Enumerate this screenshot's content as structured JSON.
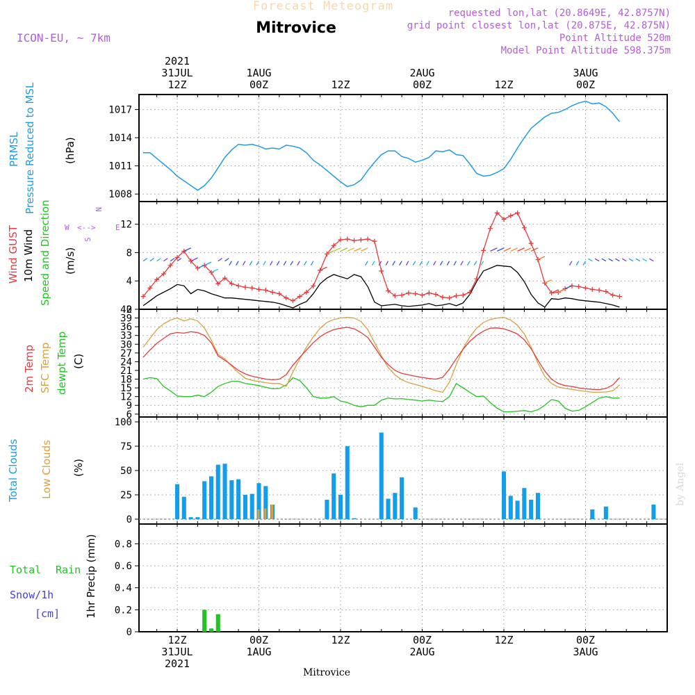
{
  "header": {
    "forecast_label": "Forecast Meteogram",
    "station": "Mitrovice",
    "model": "ICON-EU, ~ 7km",
    "requested": "requested lon,lat (20.8649E, 42.8757N)",
    "grid_point": "grid point closest lon,lat (20.875E, 42.875N)",
    "point_altitude": "Point Altitude 520m",
    "model_altitude": "Model Point Altitude 598.375m",
    "footer_station": "Mitrovice",
    "credit": "by Angel"
  },
  "colors": {
    "pressure": "#1e9be6",
    "gust": "#e8393c",
    "wind": "#000000",
    "t2m": "#e8393c",
    "sfc": "#d9a03f",
    "dewpt": "#22c322",
    "total_clouds": "#149de8",
    "low_clouds": "#d9a03f",
    "rain": "#22c322",
    "snow": "#4040e0",
    "purple": "#b45cd8"
  },
  "time_axis": {
    "top": [
      {
        "t": 0,
        "lines": [
          "2021",
          "31JUL",
          "12Z"
        ]
      },
      {
        "t": 12,
        "lines": [
          "1AUG",
          "00Z"
        ]
      },
      {
        "t": 24,
        "lines": [
          "12Z"
        ]
      },
      {
        "t": 36,
        "lines": [
          "2AUG",
          "00Z"
        ]
      },
      {
        "t": 48,
        "lines": [
          "12Z"
        ]
      },
      {
        "t": 60,
        "lines": [
          "3AUG",
          "00Z"
        ]
      }
    ],
    "bottom": [
      {
        "t": 0,
        "lines": [
          "12Z",
          "31JUL",
          "2021"
        ]
      },
      {
        "t": 12,
        "lines": [
          "00Z",
          "1AUG"
        ]
      },
      {
        "t": 24,
        "lines": [
          "12Z"
        ]
      },
      {
        "t": 36,
        "lines": [
          "00Z",
          "2AUG"
        ]
      },
      {
        "t": 48,
        "lines": [
          "12Z"
        ]
      },
      {
        "t": 60,
        "lines": [
          "00Z",
          "3AUG"
        ]
      }
    ]
  },
  "panel_labels": {
    "pressure": {
      "name1": "PRMSL",
      "name2": "Pressure Reduced to MSL",
      "unit": "(hPa)"
    },
    "wind": {
      "gust": "Wind GUST",
      "wind10": "10m Wind",
      "dir": "Speed and Direction",
      "unit": "(m/s)",
      "compass": {
        "w": "W",
        "e": "E",
        "n": "N",
        "s": "S"
      }
    },
    "temp": {
      "t2m": "2m Temp",
      "sfc": "SFC Temp",
      "dew": "dewpt Temp",
      "unit": "(C)"
    },
    "clouds": {
      "total": "Total Clouds",
      "low": "Low Clouds",
      "unit": "(%)"
    },
    "precip": {
      "total": "Total",
      "rain": "Rain",
      "snow": "Snow/1h",
      "snow_unit": "[cm]",
      "ylabel": "1hr Precip (mm)"
    }
  },
  "chart_data": [
    {
      "type": "line",
      "title": "PRMSL Pressure Reduced to MSL",
      "ylabel": "(hPa)",
      "ylim": [
        1007.2,
        1018.6
      ],
      "yticks": [
        1008,
        1011,
        1014,
        1017
      ],
      "x_hours_from_31JUL12Z": [
        -5,
        -4,
        -3,
        -2,
        -1,
        0,
        1,
        2,
        3,
        4,
        5,
        6,
        7,
        8,
        9,
        10,
        11,
        12,
        13,
        14,
        15,
        16,
        17,
        18,
        19,
        20,
        21,
        22,
        23,
        24,
        25,
        26,
        27,
        28,
        29,
        30,
        31,
        32,
        33,
        34,
        35,
        36,
        37,
        38,
        39,
        40,
        41,
        42,
        43,
        44,
        45,
        46,
        47,
        48,
        49,
        50,
        51,
        52,
        53,
        54,
        55,
        56,
        57,
        58,
        59,
        60,
        61,
        62,
        63,
        64,
        65,
        66,
        67,
        68,
        69,
        70
      ],
      "series": [
        {
          "name": "PRMSL",
          "values": [
            1012.4,
            1012.4,
            1011.8,
            1011.2,
            1010.6,
            1009.9,
            1009.4,
            1008.9,
            1008.4,
            1008.9,
            1009.7,
            1010.8,
            1011.9,
            1012.7,
            1013.3,
            1013.2,
            1013.3,
            1013.1,
            1012.8,
            1012.9,
            1012.8,
            1013.2,
            1013.1,
            1012.9,
            1012.4,
            1011.6,
            1011.1,
            1010.5,
            1009.9,
            1009.3,
            1008.8,
            1009.0,
            1009.5,
            1010.5,
            1011.4,
            1012.2,
            1012.6,
            1012.6,
            1012.0,
            1011.8,
            1011.4,
            1011.6,
            1011.9,
            1012.6,
            1012.5,
            1012.7,
            1012.2,
            1012.1,
            1011.2,
            1010.2,
            1009.9,
            1010.0,
            1010.3,
            1010.7,
            1011.7,
            1012.9,
            1014.0,
            1015.0,
            1015.6,
            1016.2,
            1016.6,
            1016.7,
            1017.0,
            1017.4,
            1017.7,
            1017.9,
            1017.6,
            1017.7,
            1017.3,
            1016.6,
            1015.7
          ]
        }
      ]
    },
    {
      "type": "line",
      "title": "Wind GUST / 10m Wind Speed and Direction",
      "ylabel": "(m/s)",
      "ylim": [
        0,
        15.2
      ],
      "yticks": [
        0,
        4,
        8,
        12
      ],
      "x_hours_from_31JUL12Z": [
        -5,
        -4,
        -3,
        -2,
        -1,
        0,
        1,
        2,
        3,
        4,
        5,
        6,
        7,
        8,
        9,
        10,
        11,
        12,
        13,
        14,
        15,
        16,
        17,
        18,
        19,
        20,
        21,
        22,
        23,
        24,
        25,
        26,
        27,
        28,
        29,
        30,
        31,
        32,
        33,
        34,
        35,
        36,
        37,
        38,
        39,
        40,
        41,
        42,
        43,
        44,
        45,
        46,
        47,
        48,
        49,
        50,
        51,
        52,
        53,
        54,
        55,
        56,
        57,
        58,
        59,
        60,
        61,
        62,
        63,
        64,
        65,
        66,
        67,
        68,
        69,
        70
      ],
      "series": [
        {
          "name": "Wind GUST",
          "values": [
            1.8,
            3.0,
            4.2,
            5.0,
            6.2,
            7.3,
            8.2,
            6.8,
            5.8,
            6.2,
            5.2,
            3.6,
            4.4,
            3.6,
            3.3,
            3.1,
            3.0,
            2.8,
            2.7,
            2.4,
            2.2,
            1.6,
            1.2,
            1.8,
            2.4,
            3.3,
            5.5,
            7.8,
            9.0,
            9.8,
            9.9,
            9.7,
            9.8,
            9.9,
            9.6,
            5.4,
            2.6,
            1.9,
            2.0,
            2.3,
            2.2,
            2.0,
            2.3,
            2.1,
            1.7,
            1.6,
            1.9,
            2.0,
            2.4,
            4.3,
            8.3,
            11.4,
            13.6,
            12.7,
            13.2,
            13.6,
            11.5,
            9.3,
            7.0,
            3.7,
            2.3,
            2.4,
            2.9,
            3.3,
            3.2,
            3.0,
            2.8,
            2.7,
            2.5,
            2.0,
            1.8
          ],
          "extra_tail": [
            2.6,
            3.3,
            4.3,
            4.9,
            4.9,
            5.0
          ]
        },
        {
          "name": "10m Wind",
          "values": [
            0.5,
            1.2,
            1.9,
            2.4,
            2.9,
            3.5,
            3.3,
            2.2,
            2.8,
            2.6,
            2.2,
            1.9,
            1.6,
            1.6,
            1.5,
            1.4,
            1.3,
            1.2,
            1.1,
            1.0,
            0.8,
            0.5,
            0.2,
            0.7,
            1.1,
            2.2,
            3.6,
            4.4,
            4.9,
            4.6,
            4.3,
            4.9,
            4.6,
            3.2,
            1.0,
            0.5,
            0.6,
            0.7,
            0.5,
            0.4,
            0.5,
            0.6,
            0.8,
            0.5,
            0.6,
            0.8,
            0.5,
            0.9,
            2.1,
            3.9,
            5.4,
            5.8,
            6.2,
            6.1,
            6.0,
            5.2,
            3.9,
            2.1,
            0.9,
            0.3,
            1.5,
            1.4,
            1.6,
            1.5,
            1.3,
            1.2,
            1.1,
            1.0,
            0.8,
            0.6,
            0.3
          ],
          "extra_tail": [
            0.8,
            1.6,
            2.1,
            2.2,
            1.9,
            1.8
          ]
        }
      ]
    },
    {
      "type": "line",
      "title": "2m Temp / SFC Temp / dewpt Temp",
      "ylabel": "(C)",
      "ylim": [
        5,
        42
      ],
      "yticks": [
        6,
        9,
        12,
        15,
        18,
        21,
        24,
        27,
        30,
        33,
        36,
        39,
        42
      ],
      "x_hours_from_31JUL12Z": [
        -5,
        -4,
        -3,
        -2,
        -1,
        0,
        1,
        2,
        3,
        4,
        5,
        6,
        7,
        8,
        9,
        10,
        11,
        12,
        13,
        14,
        15,
        16,
        17,
        18,
        19,
        20,
        21,
        22,
        23,
        24,
        25,
        26,
        27,
        28,
        29,
        30,
        31,
        32,
        33,
        34,
        35,
        36,
        37,
        38,
        39,
        40,
        41,
        42,
        43,
        44,
        45,
        46,
        47,
        48,
        49,
        50,
        51,
        52,
        53,
        54,
        55,
        56,
        57,
        58,
        59,
        60,
        61,
        62,
        63,
        64,
        65,
        66,
        67,
        68,
        69,
        70
      ],
      "series": [
        {
          "name": "2m Temp",
          "values": [
            25.5,
            28.0,
            30.3,
            32.0,
            33.6,
            34.0,
            33.8,
            34.3,
            34.0,
            33.0,
            30.5,
            26.0,
            24.5,
            22.8,
            21.0,
            19.8,
            19.0,
            18.5,
            18.0,
            17.8,
            18.0,
            19.5,
            22.8,
            25.5,
            28.0,
            30.5,
            32.6,
            34.0,
            35.0,
            35.5,
            35.8,
            35.3,
            34.0,
            32.3,
            29.0,
            25.5,
            23.0,
            21.0,
            20.0,
            19.5,
            19.0,
            18.6,
            18.2,
            18.0,
            18.6,
            21.5,
            25.0,
            28.3,
            31.0,
            33.0,
            34.5,
            35.5,
            35.6,
            35.3,
            34.5,
            33.5,
            31.5,
            28.5,
            24.5,
            20.8,
            18.0,
            16.5,
            15.8,
            15.5,
            15.0,
            14.7,
            14.5,
            14.4,
            14.8,
            16.0,
            18.5
          ]
        },
        {
          "name": "SFC Temp",
          "values": [
            29.0,
            32.0,
            35.0,
            37.0,
            38.3,
            39.0,
            38.0,
            38.7,
            38.0,
            35.5,
            31.5,
            26.5,
            25.0,
            22.5,
            20.2,
            18.3,
            17.6,
            17.2,
            16.8,
            16.5,
            16.5,
            15.5,
            20.5,
            25.0,
            29.0,
            32.5,
            35.5,
            37.5,
            38.5,
            39.0,
            39.2,
            39.0,
            37.8,
            35.0,
            30.5,
            26.0,
            22.0,
            19.5,
            17.8,
            16.8,
            16.2,
            15.5,
            14.8,
            14.0,
            13.5,
            17.0,
            23.0,
            28.5,
            32.5,
            35.5,
            37.5,
            38.5,
            39.0,
            39.2,
            38.3,
            36.5,
            33.5,
            29.0,
            23.5,
            19.0,
            16.5,
            15.3,
            14.8,
            14.5,
            14.1,
            13.8,
            13.5,
            13.5,
            13.6,
            14.0,
            16.0
          ]
        },
        {
          "name": "dewpt Temp",
          "values": [
            18.0,
            18.5,
            18.2,
            15.5,
            14.0,
            12.2,
            12.0,
            12.0,
            12.5,
            12.0,
            13.5,
            15.5,
            16.5,
            17.2,
            17.3,
            16.5,
            16.2,
            15.8,
            15.2,
            14.7,
            14.8,
            16.0,
            18.5,
            17.5,
            15.0,
            12.0,
            11.5,
            11.5,
            12.0,
            10.5,
            10.0,
            9.0,
            8.5,
            9.0,
            9.0,
            10.8,
            11.5,
            11.2,
            11.3,
            11.0,
            10.8,
            10.5,
            10.8,
            10.5,
            10.3,
            12.0,
            16.5,
            15.0,
            13.5,
            12.0,
            12.2,
            10.0,
            8.0,
            6.8,
            6.8,
            7.0,
            7.2,
            6.8,
            7.5,
            9.0,
            11.0,
            10.5,
            8.0,
            7.0,
            7.3,
            8.5,
            10.0,
            11.5,
            12.0,
            11.5,
            11.5
          ]
        },
        {
          "name": "dewpt tail",
          "values": []
        }
      ]
    },
    {
      "type": "bar",
      "title": "Total Clouds / Low Clouds",
      "ylabel": "(%)",
      "ylim": [
        -5,
        105
      ],
      "yticks": [
        0,
        25,
        50,
        75,
        100
      ],
      "x_hours_from_31JUL12Z": [
        -1,
        0,
        1,
        2,
        3,
        4,
        5,
        6,
        7,
        8,
        9,
        10,
        11,
        12,
        13,
        14,
        15,
        16,
        17,
        18,
        19,
        20,
        21,
        22,
        23,
        24,
        25,
        26,
        27,
        28,
        29,
        30,
        31,
        32,
        33,
        34,
        35,
        36,
        37,
        38,
        39,
        40,
        41,
        42,
        43,
        44,
        45,
        46,
        47,
        48,
        49,
        50,
        51,
        52,
        53,
        54,
        55,
        56,
        57,
        58,
        59,
        60,
        61,
        62,
        63,
        64,
        65,
        66,
        67,
        68,
        69,
        70
      ],
      "series": [
        {
          "name": "Total Clouds",
          "values": [
            0,
            36,
            23,
            2,
            2,
            39,
            44,
            56,
            57,
            40,
            41,
            25,
            26,
            37,
            34,
            15,
            0,
            0,
            0,
            0,
            0,
            0,
            0,
            20,
            47,
            25,
            75,
            1,
            0,
            0,
            0,
            89,
            21,
            27,
            43,
            0,
            12,
            0,
            0,
            0,
            0,
            0,
            0,
            0,
            0,
            0,
            0,
            0,
            0,
            49,
            24,
            19,
            32,
            20,
            27,
            0,
            0,
            0,
            0,
            0,
            0,
            0,
            10,
            0,
            13,
            0,
            0,
            0,
            0,
            0,
            0,
            15
          ]
        },
        {
          "name": "Low Clouds",
          "values": [
            0,
            0,
            0,
            0,
            0,
            0,
            0,
            0,
            0,
            0,
            0,
            0,
            0,
            10,
            11,
            15,
            0,
            0,
            0,
            0,
            0,
            0,
            0,
            0,
            0,
            0,
            0,
            0,
            0,
            0,
            0,
            0,
            0,
            0,
            0,
            0,
            0,
            0,
            0,
            0,
            0,
            0,
            0,
            0,
            0,
            0,
            0,
            0,
            0,
            0,
            0,
            0,
            0,
            0,
            0,
            0,
            0,
            0,
            0,
            0,
            0,
            0,
            0,
            0,
            0,
            0,
            0,
            0,
            0,
            0,
            0,
            0
          ]
        }
      ]
    },
    {
      "type": "bar",
      "title": "1hr Precip",
      "ylabel": "1hr Precip (mm)",
      "ylim": [
        0,
        0.98
      ],
      "yticks": [
        0,
        0.2,
        0.4,
        0.6,
        0.8
      ],
      "x_hours_from_31JUL12Z": [
        4,
        5,
        6
      ],
      "series": [
        {
          "name": "Total Rain",
          "values": [
            0.2,
            0.03,
            0.16
          ]
        }
      ]
    }
  ]
}
